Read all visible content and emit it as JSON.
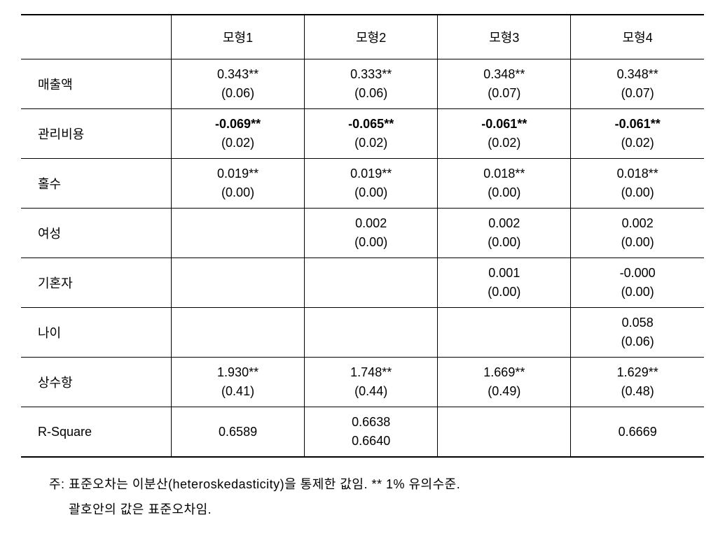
{
  "table": {
    "columns": [
      "",
      "모형1",
      "모형2",
      "모형3",
      "모형4"
    ],
    "rows": [
      {
        "label": "매출액",
        "cells": [
          {
            "coef": "0.343**",
            "se": "(0.06)",
            "bold": false
          },
          {
            "coef": "0.333**",
            "se": "(0.06)",
            "bold": false
          },
          {
            "coef": "0.348**",
            "se": "(0.07)",
            "bold": false
          },
          {
            "coef": "0.348**",
            "se": "(0.07)",
            "bold": false
          }
        ]
      },
      {
        "label": "관리비용",
        "cells": [
          {
            "coef": "-0.069**",
            "se": "(0.02)",
            "bold": true
          },
          {
            "coef": "-0.065**",
            "se": "(0.02)",
            "bold": true
          },
          {
            "coef": "-0.061**",
            "se": "(0.02)",
            "bold": true
          },
          {
            "coef": "-0.061**",
            "se": "(0.02)",
            "bold": true
          }
        ]
      },
      {
        "label": "홀수",
        "cells": [
          {
            "coef": "0.019**",
            "se": "(0.00)",
            "bold": false
          },
          {
            "coef": "0.019**",
            "se": "(0.00)",
            "bold": false
          },
          {
            "coef": "0.018**",
            "se": "(0.00)",
            "bold": false
          },
          {
            "coef": "0.018**",
            "se": "(0.00)",
            "bold": false
          }
        ]
      },
      {
        "label": "여성",
        "cells": [
          {
            "coef": "",
            "se": "",
            "bold": false
          },
          {
            "coef": "0.002",
            "se": "(0.00)",
            "bold": false
          },
          {
            "coef": "0.002",
            "se": "(0.00)",
            "bold": false
          },
          {
            "coef": "0.002",
            "se": "(0.00)",
            "bold": false
          }
        ]
      },
      {
        "label": "기혼자",
        "cells": [
          {
            "coef": "",
            "se": "",
            "bold": false
          },
          {
            "coef": "",
            "se": "",
            "bold": false
          },
          {
            "coef": "0.001",
            "se": "(0.00)",
            "bold": false
          },
          {
            "coef": "-0.000",
            "se": "(0.00)",
            "bold": false
          }
        ]
      },
      {
        "label": "나이",
        "cells": [
          {
            "coef": "",
            "se": "",
            "bold": false
          },
          {
            "coef": "",
            "se": "",
            "bold": false
          },
          {
            "coef": "",
            "se": "",
            "bold": false
          },
          {
            "coef": "0.058",
            "se": "(0.06)",
            "bold": false
          }
        ]
      },
      {
        "label": "상수항",
        "cells": [
          {
            "coef": "1.930**",
            "se": "(0.41)",
            "bold": false
          },
          {
            "coef": "1.748**",
            "se": "(0.44)",
            "bold": false
          },
          {
            "coef": "1.669**",
            "se": "(0.49)",
            "bold": false
          },
          {
            "coef": "1.629**",
            "se": "(0.48)",
            "bold": false
          }
        ]
      },
      {
        "label": "R-Square",
        "cells": [
          {
            "coef": "0.6589",
            "se": "",
            "bold": false,
            "single": true
          },
          {
            "coef": "0.6638",
            "se": "0.6640",
            "bold": false
          },
          {
            "coef": "",
            "se": "",
            "bold": false
          },
          {
            "coef": "0.6669",
            "se": "",
            "bold": false,
            "single": true
          }
        ]
      }
    ]
  },
  "notes": {
    "line1": "주: 표준오차는 이분산(heteroskedasticity)을 통제한 값임.  ** 1% 유의수준.",
    "line2": "괄호안의 값은 표준오차임."
  }
}
